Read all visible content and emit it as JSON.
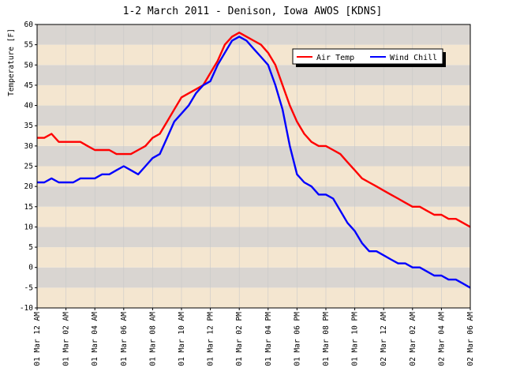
{
  "chart_data": {
    "type": "line",
    "title": "1-2 March 2011 - Denison, Iowa AWOS [KDNS]",
    "ylabel": "Temperature [F]",
    "xlabel": "",
    "ylim": [
      -10,
      60
    ],
    "yticks": [
      -10,
      -5,
      0,
      5,
      10,
      15,
      20,
      25,
      30,
      35,
      40,
      45,
      50,
      55,
      60
    ],
    "x_categories": [
      "01 Mar 12 AM",
      "01 Mar 02 AM",
      "01 Mar 04 AM",
      "01 Mar 06 AM",
      "01 Mar 08 AM",
      "01 Mar 10 AM",
      "01 Mar 12 PM",
      "01 Mar 02 PM",
      "01 Mar 04 PM",
      "01 Mar 06 PM",
      "01 Mar 08 PM",
      "01 Mar 10 PM",
      "02 Mar 12 AM",
      "02 Mar 02 AM",
      "02 Mar 04 AM",
      "02 Mar 06 AM"
    ],
    "x_hours": [
      0,
      0.5,
      1,
      1.5,
      2,
      2.5,
      3,
      3.5,
      4,
      4.5,
      5,
      5.5,
      6,
      6.5,
      7,
      7.5,
      8,
      8.5,
      9,
      9.5,
      10,
      10.5,
      11,
      11.5,
      12,
      12.5,
      13,
      13.5,
      14,
      14.5,
      15,
      15.5,
      16,
      16.5,
      17,
      17.5,
      18,
      18.5,
      19,
      19.5,
      20,
      20.5,
      21,
      21.5,
      22,
      22.5,
      23,
      23.5,
      24,
      24.5,
      25,
      25.5,
      26,
      26.5,
      27,
      27.5,
      28,
      28.5,
      29,
      29.5,
      30
    ],
    "series": [
      {
        "name": "Air Temp",
        "color": "#ff0000",
        "values": [
          32,
          32,
          33,
          31,
          31,
          31,
          31,
          30,
          29,
          29,
          29,
          28,
          28,
          28,
          29,
          30,
          32,
          33,
          36,
          39,
          42,
          43,
          44,
          45,
          48,
          51,
          55,
          57,
          58,
          57,
          56,
          55,
          53,
          50,
          45,
          40,
          36,
          33,
          31,
          30,
          30,
          29,
          28,
          26,
          24,
          22,
          21,
          20,
          19,
          18,
          17,
          16,
          15,
          15,
          14,
          13,
          13,
          12,
          12,
          11,
          10
        ]
      },
      {
        "name": "Wind Chill",
        "color": "#0000ff",
        "values": [
          21,
          21,
          22,
          21,
          21,
          21,
          22,
          22,
          22,
          23,
          23,
          24,
          25,
          24,
          23,
          25,
          27,
          28,
          32,
          36,
          38,
          40,
          43,
          45,
          46,
          50,
          53,
          56,
          57,
          56,
          54,
          52,
          50,
          45,
          39,
          30,
          23,
          21,
          20,
          18,
          18,
          17,
          14,
          11,
          9,
          6,
          4,
          4,
          3,
          2,
          1,
          1,
          0,
          0,
          -1,
          -2,
          -2,
          -3,
          -3,
          -4,
          -5
        ]
      }
    ],
    "legend": "top-right",
    "grid": true,
    "background_bands": [
      "#d9d5d1",
      "#f4e6d0"
    ]
  }
}
